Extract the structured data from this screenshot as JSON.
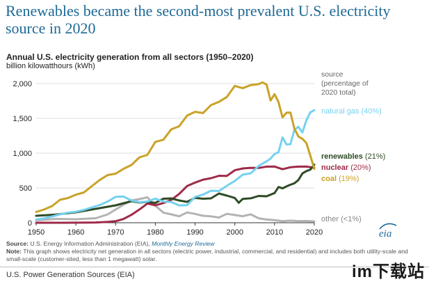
{
  "headline": "Renewables became the second-most prevalent U.S. electricity source in 2020",
  "chart_data": {
    "type": "line",
    "title": "Annual U.S. electricity generation from all sectors (1950–2020)",
    "ylabel": "billion kilowatthours (kWh)",
    "xlabel": "",
    "xlim": [
      1950,
      2020
    ],
    "ylim": [
      0,
      2000
    ],
    "x_ticks": [
      1950,
      1960,
      1970,
      1980,
      1990,
      2000,
      2010,
      2020
    ],
    "y_ticks": [
      {
        "value": 0,
        "label": "0"
      },
      {
        "value": 500,
        "label": "500"
      },
      {
        "value": 1000,
        "label": "1,000"
      },
      {
        "value": 1500,
        "label": "1,500"
      },
      {
        "value": 2000,
        "label": "2,000"
      }
    ],
    "legend_header": [
      "source",
      "(percentage of",
      "2020 total)"
    ],
    "series": [
      {
        "name": "coal",
        "label_name": "coal",
        "label_pct": "(19%)",
        "color": "#c9a227",
        "x": [
          1950,
          1952,
          1954,
          1956,
          1958,
          1960,
          1962,
          1964,
          1966,
          1968,
          1970,
          1972,
          1974,
          1976,
          1978,
          1980,
          1982,
          1984,
          1986,
          1988,
          1990,
          1992,
          1994,
          1996,
          1998,
          2000,
          2002,
          2004,
          2006,
          2007,
          2008,
          2009,
          2010,
          2011,
          2012,
          2013,
          2014,
          2015,
          2016,
          2017,
          2018,
          2019,
          2020
        ],
        "values": [
          155,
          190,
          240,
          330,
          355,
          403,
          435,
          525,
          615,
          685,
          705,
          775,
          830,
          940,
          975,
          1162,
          1192,
          1342,
          1386,
          1540,
          1594,
          1576,
          1690,
          1737,
          1807,
          1966,
          1933,
          1978,
          1991,
          2016,
          1986,
          1756,
          1847,
          1733,
          1514,
          1581,
          1582,
          1352,
          1239,
          1206,
          1146,
          965,
          774
        ]
      },
      {
        "name": "natural gas",
        "label_name": "natural gas",
        "label_pct": "(40%)",
        "color": "#76d1ef",
        "x": [
          1950,
          1952,
          1954,
          1956,
          1958,
          1960,
          1962,
          1964,
          1966,
          1968,
          1970,
          1972,
          1974,
          1976,
          1978,
          1980,
          1982,
          1984,
          1986,
          1988,
          1990,
          1992,
          1994,
          1996,
          1998,
          2000,
          2002,
          2004,
          2006,
          2008,
          2009,
          2010,
          2011,
          2012,
          2013,
          2014,
          2015,
          2016,
          2017,
          2018,
          2019,
          2020
        ],
        "values": [
          45,
          65,
          90,
          120,
          145,
          158,
          185,
          220,
          255,
          305,
          372,
          376,
          320,
          295,
          305,
          346,
          305,
          297,
          249,
          253,
          372,
          404,
          460,
          455,
          531,
          601,
          691,
          710,
          816,
          883,
          921,
          988,
          1014,
          1226,
          1125,
          1127,
          1335,
          1379,
          1297,
          1471,
          1586,
          1617
        ]
      },
      {
        "name": "renewables",
        "label_name": "renewables",
        "label_pct": "(21%)",
        "color": "#2f4b26",
        "x": [
          1950,
          1955,
          1960,
          1965,
          1970,
          1972,
          1974,
          1976,
          1978,
          1980,
          1982,
          1984,
          1986,
          1988,
          1990,
          1992,
          1994,
          1996,
          1998,
          2000,
          2001,
          2002,
          2004,
          2006,
          2008,
          2010,
          2011,
          2012,
          2013,
          2014,
          2015,
          2016,
          2017,
          2018,
          2019,
          2020
        ],
        "values": [
          100,
          118,
          150,
          200,
          250,
          280,
          310,
          290,
          300,
          285,
          345,
          350,
          320,
          300,
          357,
          345,
          350,
          420,
          390,
          356,
          287,
          343,
          351,
          385,
          380,
          427,
          513,
          494,
          522,
          546,
          567,
          613,
          708,
          742,
          763,
          834
        ]
      },
      {
        "name": "nuclear",
        "label_name": "nuclear",
        "label_pct": "(20%)",
        "color": "#9e2a48",
        "x": [
          1950,
          1957,
          1960,
          1965,
          1968,
          1970,
          1972,
          1974,
          1976,
          1978,
          1980,
          1982,
          1984,
          1986,
          1988,
          1990,
          1992,
          1994,
          1996,
          1998,
          2000,
          2002,
          2004,
          2006,
          2008,
          2010,
          2012,
          2014,
          2016,
          2018,
          2020
        ],
        "values": [
          0,
          0,
          1,
          4,
          13,
          22,
          54,
          114,
          191,
          276,
          251,
          283,
          328,
          414,
          527,
          577,
          619,
          640,
          675,
          673,
          754,
          780,
          789,
          787,
          806,
          807,
          769,
          797,
          806,
          807,
          790
        ]
      },
      {
        "name": "other",
        "label_name": "other",
        "label_pct": "(<1%)",
        "color": "#b3b3b3",
        "x": [
          1950,
          1955,
          1960,
          1965,
          1968,
          1970,
          1972,
          1974,
          1976,
          1978,
          1980,
          1982,
          1984,
          1986,
          1988,
          1990,
          1992,
          1994,
          1996,
          1998,
          2000,
          2002,
          2004,
          2006,
          2008,
          2010,
          2012,
          2014,
          2016,
          2018,
          2020
        ],
        "values": [
          35,
          55,
          50,
          65,
          120,
          190,
          260,
          320,
          340,
          365,
          246,
          146,
          120,
          93,
          148,
          127,
          100,
          92,
          75,
          128,
          111,
          94,
          121,
          64,
          46,
          37,
          23,
          30,
          24,
          25,
          20
        ]
      }
    ],
    "logo_text": "eia"
  },
  "notes": {
    "source_label": "Source:",
    "source_text": "U.S. Energy Information Administration (EIA),",
    "source_link": "Monthly Energy Review",
    "note_label": "Note:",
    "note_text": "This graph shows electricity net generation in all sectors (electric power, industrial, commercial, and residential) and includes both utility-scale and small-scale (customer-sited, less than 1 megawatt) solar."
  },
  "footer": "U.S. Power Generation Sources (EIA)",
  "watermark": "im下载站"
}
